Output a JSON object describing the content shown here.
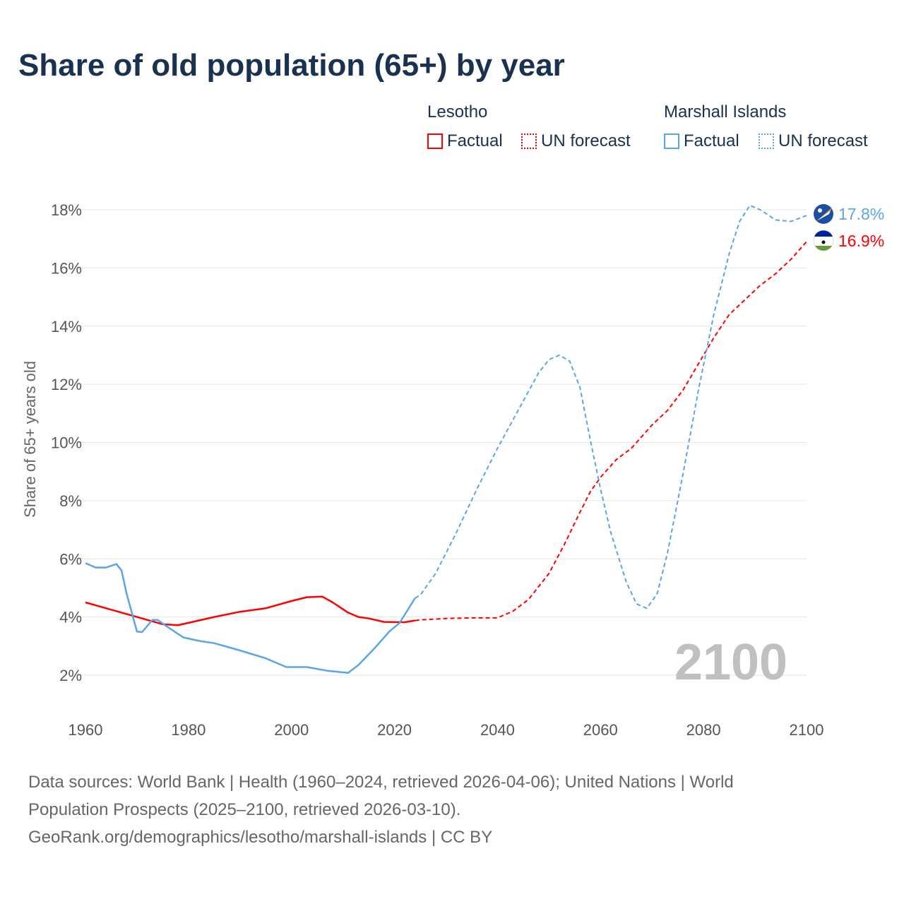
{
  "chart_data": {
    "type": "line",
    "title": "Share of old population (65+) by year",
    "xlabel": "",
    "ylabel": "Share of 65+ years old",
    "xlim": [
      1960,
      2100
    ],
    "ylim": [
      1,
      18.5
    ],
    "x_ticks": [
      "1960",
      "1980",
      "2000",
      "2020",
      "2040",
      "2060",
      "2080",
      "2100"
    ],
    "y_ticks": [
      "2%",
      "4%",
      "6%",
      "8%",
      "10%",
      "12%",
      "14%",
      "16%",
      "18%"
    ],
    "grid": true,
    "year_label": "2100",
    "legend": {
      "groups": [
        {
          "name": "Lesotho",
          "items": [
            "Factual",
            "UN forecast"
          ]
        },
        {
          "name": "Marshall Islands",
          "items": [
            "Factual",
            "UN forecast"
          ]
        }
      ],
      "placement": "top-right"
    },
    "series": [
      {
        "name": "Lesotho",
        "color": "#ff0000",
        "end_label": "16.9%",
        "factual": {
          "x": [
            1960,
            1965,
            1970,
            1975,
            1978,
            1980,
            1985,
            1990,
            1995,
            2000,
            2003,
            2006,
            2008,
            2011,
            2013,
            2015,
            2018,
            2022,
            2024
          ],
          "y": [
            4.5,
            4.25,
            4.0,
            3.75,
            3.72,
            3.8,
            4.0,
            4.18,
            4.3,
            4.55,
            4.68,
            4.7,
            4.5,
            4.15,
            4.0,
            3.95,
            3.83,
            3.82,
            3.88
          ]
        },
        "forecast": {
          "x": [
            2024,
            2025,
            2030,
            2035,
            2040,
            2043,
            2046,
            2050,
            2053,
            2056,
            2058,
            2060,
            2063,
            2066,
            2070,
            2073,
            2076,
            2079,
            2082,
            2085,
            2088,
            2091,
            2094,
            2097,
            2100
          ],
          "y": [
            3.88,
            3.9,
            3.95,
            3.97,
            3.97,
            4.2,
            4.6,
            5.5,
            6.5,
            7.6,
            8.3,
            8.8,
            9.4,
            9.8,
            10.6,
            11.1,
            11.8,
            12.7,
            13.6,
            14.4,
            14.9,
            15.4,
            15.8,
            16.3,
            16.9
          ]
        }
      },
      {
        "name": "Marshall Islands",
        "color": "#5aa5e8",
        "end_label": "17.8%",
        "factual": {
          "x": [
            1960,
            1962,
            1964,
            1966,
            1967,
            1968,
            1970,
            1971,
            1973,
            1974,
            1976,
            1979,
            1982,
            1985,
            1990,
            1995,
            1999,
            2003,
            2007,
            2011,
            2013,
            2016,
            2019,
            2021,
            2024
          ],
          "y": [
            5.85,
            5.7,
            5.7,
            5.82,
            5.6,
            4.8,
            3.5,
            3.48,
            3.9,
            3.9,
            3.65,
            3.3,
            3.18,
            3.1,
            2.85,
            2.58,
            2.28,
            2.28,
            2.15,
            2.08,
            2.35,
            2.9,
            3.5,
            3.8,
            4.65
          ]
        },
        "forecast": {
          "x": [
            2024,
            2025,
            2028,
            2032,
            2036,
            2040,
            2044,
            2048,
            2050,
            2052,
            2054,
            2056,
            2058,
            2060,
            2062,
            2065,
            2067,
            2069,
            2071,
            2073,
            2076,
            2079,
            2082,
            2085,
            2087,
            2089,
            2091,
            2094,
            2097,
            2100
          ],
          "y": [
            4.65,
            4.75,
            5.5,
            6.9,
            8.4,
            9.8,
            11.1,
            12.4,
            12.85,
            13.0,
            12.8,
            11.9,
            10.1,
            8.4,
            6.9,
            5.2,
            4.45,
            4.3,
            4.8,
            6.2,
            8.9,
            11.8,
            14.4,
            16.5,
            17.6,
            18.15,
            18.0,
            17.65,
            17.6,
            17.8
          ]
        }
      }
    ]
  },
  "footer": {
    "line1": "Data sources: World Bank | Health (1960–2024, retrieved 2026-04-06); United Nations | World",
    "line2": "Population Prospects (2025–2100, retrieved 2026-03-10).",
    "line3": "GeoRank.org/demographics/lesotho/marshall-islands | CC BY"
  }
}
